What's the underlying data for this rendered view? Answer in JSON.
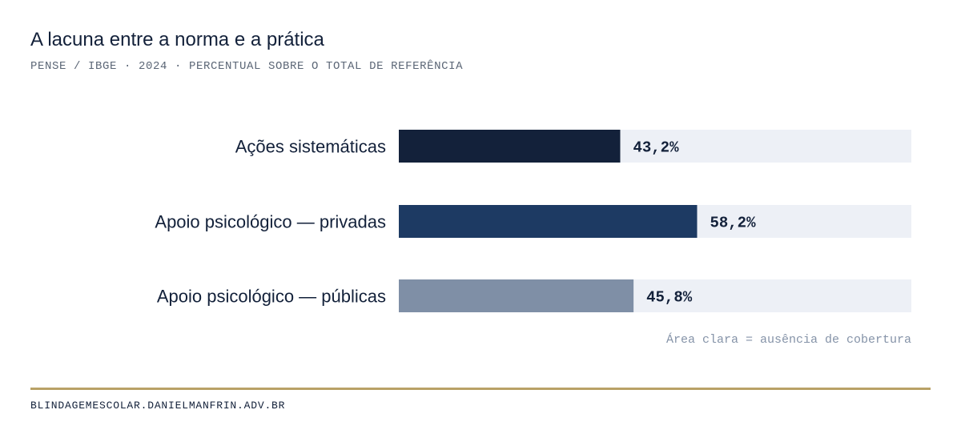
{
  "header": {
    "title": "A lacuna entre a norma e a prática",
    "subtitle": "PENSE / IBGE · 2024 · PERCENTUAL SOBRE O TOTAL DE REFERÊNCIA"
  },
  "chart_data": {
    "type": "bar",
    "orientation": "horizontal",
    "title": "A lacuna entre a norma e a prática",
    "subtitle": "PENSE / IBGE · 2024 · PERCENTUAL SOBRE O TOTAL DE REFERÊNCIA",
    "categories": [
      "Ações sistemáticas",
      "Apoio psicológico — privadas",
      "Apoio psicológico — públicas"
    ],
    "values": [
      43.2,
      58.2,
      45.8
    ],
    "value_labels": [
      "43,2%",
      "58,2%",
      "45,8%"
    ],
    "bar_colors": [
      "#13213a",
      "#1d3a63",
      "#7f8fa6"
    ],
    "track_color": "#edf0f6",
    "xlim": [
      0,
      100
    ],
    "unit": "%",
    "grid": false,
    "legend": "none",
    "annotation": "Área clara = ausência de cobertura"
  },
  "note": "Área clara = ausência de cobertura",
  "footer": {
    "source": "BLINDAGEMESCOLAR.DANIELMANFRIN.ADV.BR",
    "rule_color": "#b9a166"
  }
}
